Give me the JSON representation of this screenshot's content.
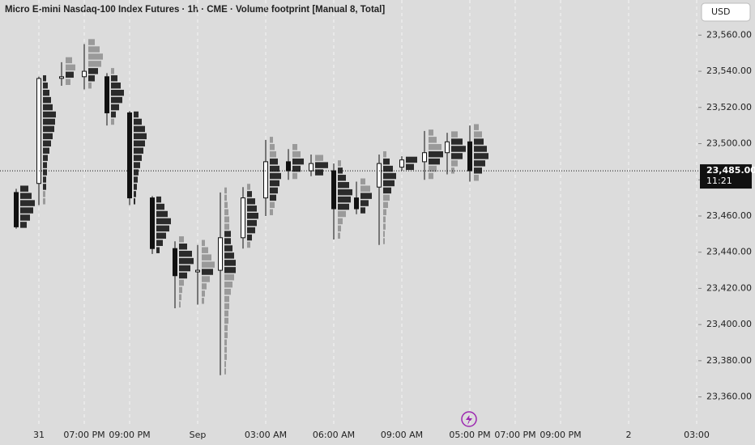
{
  "chart_data": {
    "type": "candlestick",
    "title": "Micro E-mini Nasdaq-100 Index Futures · 1h · CME · Volume footprint [Manual 8, Total]",
    "currency": "USD",
    "categories": [
      null,
      "31",
      null,
      "07:00 PM",
      null,
      "09:00 PM",
      null,
      null,
      "Sep",
      null,
      null,
      "03:00 AM",
      null,
      null,
      "06:00 AM",
      null,
      null,
      "09:00 AM",
      null,
      null,
      "05:00 PM",
      null,
      "07:00 PM",
      null,
      "09:00 PM",
      null,
      null,
      "2",
      null,
      null,
      "03:00"
    ],
    "open": [
      23473,
      23478,
      23537,
      23537,
      23537,
      23517,
      23470,
      23442,
      23430,
      23430,
      23448,
      23470,
      23490,
      23485,
      23485,
      23470,
      23476,
      23487,
      23490,
      23495,
      23501,
      null,
      null,
      null,
      null,
      null,
      null,
      null,
      null,
      null,
      null
    ],
    "high": [
      23475,
      23537,
      23545,
      23555,
      23539,
      23518,
      23471,
      23446,
      23444,
      23473,
      23476,
      23502,
      23497,
      23494,
      23489,
      23479,
      23494,
      23493,
      23507,
      23506,
      23510,
      null,
      null,
      null,
      null,
      null,
      null,
      null,
      null,
      null,
      null
    ],
    "low": [
      23453,
      23466,
      23532,
      23530,
      23510,
      23466,
      23439,
      23409,
      23411,
      23372,
      23442,
      23460,
      23480,
      23482,
      23447,
      23461,
      23444,
      23485,
      23480,
      23483,
      23479,
      null,
      null,
      null,
      null,
      null,
      null,
      null,
      null,
      null,
      null
    ],
    "close": [
      23454,
      23536,
      23537,
      23540,
      23517,
      23470,
      23442,
      23427,
      23430,
      23448,
      23470,
      23490,
      23485,
      23489,
      23464,
      23464,
      23489,
      23491,
      23495,
      23501,
      23485,
      null,
      null,
      null,
      null,
      null,
      null,
      null,
      null,
      null,
      null
    ],
    "footprint_row_size": 4,
    "footprint": [
      [
        8,
        12,
        16,
        18,
        14,
        10
      ],
      [
        3,
        3,
        4,
        4,
        5,
        5,
        6,
        8,
        10,
        12,
        14,
        15,
        16,
        12,
        10,
        8,
        6,
        4
      ],
      [
        6,
        10,
        12,
        8
      ],
      [
        4,
        8,
        12,
        16,
        18,
        14,
        8
      ],
      [
        4,
        6,
        10,
        14,
        16,
        12,
        8,
        4
      ],
      [
        2,
        3,
        4,
        5,
        6,
        8,
        10,
        12,
        14,
        16,
        14,
        10,
        6
      ],
      [
        4,
        8,
        12,
        16,
        18,
        14,
        10,
        6
      ],
      [
        2,
        3,
        4,
        6,
        10,
        14,
        18,
        16,
        10,
        6
      ],
      [
        3,
        4,
        6,
        10,
        14,
        16,
        12,
        8,
        4
      ],
      [
        2,
        2,
        3,
        3,
        3,
        4,
        4,
        5,
        5,
        6,
        6,
        8,
        10,
        12,
        14,
        14,
        12,
        10,
        8,
        8,
        6,
        6,
        5,
        4,
        3,
        3
      ],
      [
        4,
        6,
        10,
        12,
        14,
        12,
        10,
        6,
        4
      ],
      [
        4,
        6,
        8,
        10,
        12,
        14,
        12,
        10,
        8,
        6,
        4
      ],
      [
        6,
        10,
        14,
        10,
        6
      ],
      [
        10,
        16,
        10
      ],
      [
        3,
        4,
        6,
        10,
        14,
        16,
        18,
        14,
        10,
        6,
        4
      ],
      [
        6,
        10,
        14,
        12,
        6
      ],
      [
        2,
        2,
        3,
        3,
        4,
        6,
        8,
        10,
        14,
        16,
        12,
        8,
        4
      ],
      [
        10,
        14
      ],
      [
        6,
        10,
        14,
        18,
        16,
        10,
        6
      ],
      [
        4,
        8,
        14,
        18,
        14,
        8
      ],
      [
        6,
        10,
        14,
        18,
        16,
        12,
        10,
        6
      ],
      null,
      null,
      null,
      null,
      null,
      null,
      null,
      null,
      null,
      null
    ],
    "ylim": [
      23344.6,
      23579.4
    ],
    "yticks": [
      {
        "value": 23360,
        "label": "23,360.00"
      },
      {
        "value": 23380,
        "label": "23,380.00"
      },
      {
        "value": 23400,
        "label": "23,400.00"
      },
      {
        "value": 23420,
        "label": "23,420.00"
      },
      {
        "value": 23440,
        "label": "23,440.00"
      },
      {
        "value": 23460,
        "label": "23,460.00"
      },
      {
        "value": 23480,
        "label": "23,480.00"
      },
      {
        "value": 23500,
        "label": "23,500.00"
      },
      {
        "value": 23520,
        "label": "23,520.00"
      },
      {
        "value": 23540,
        "label": "23,540.00"
      },
      {
        "value": 23560,
        "label": "23,560.00"
      }
    ],
    "last_price": {
      "value": 23485,
      "label": "23,485.00"
    },
    "countdown": "11:21",
    "grid": true
  }
}
